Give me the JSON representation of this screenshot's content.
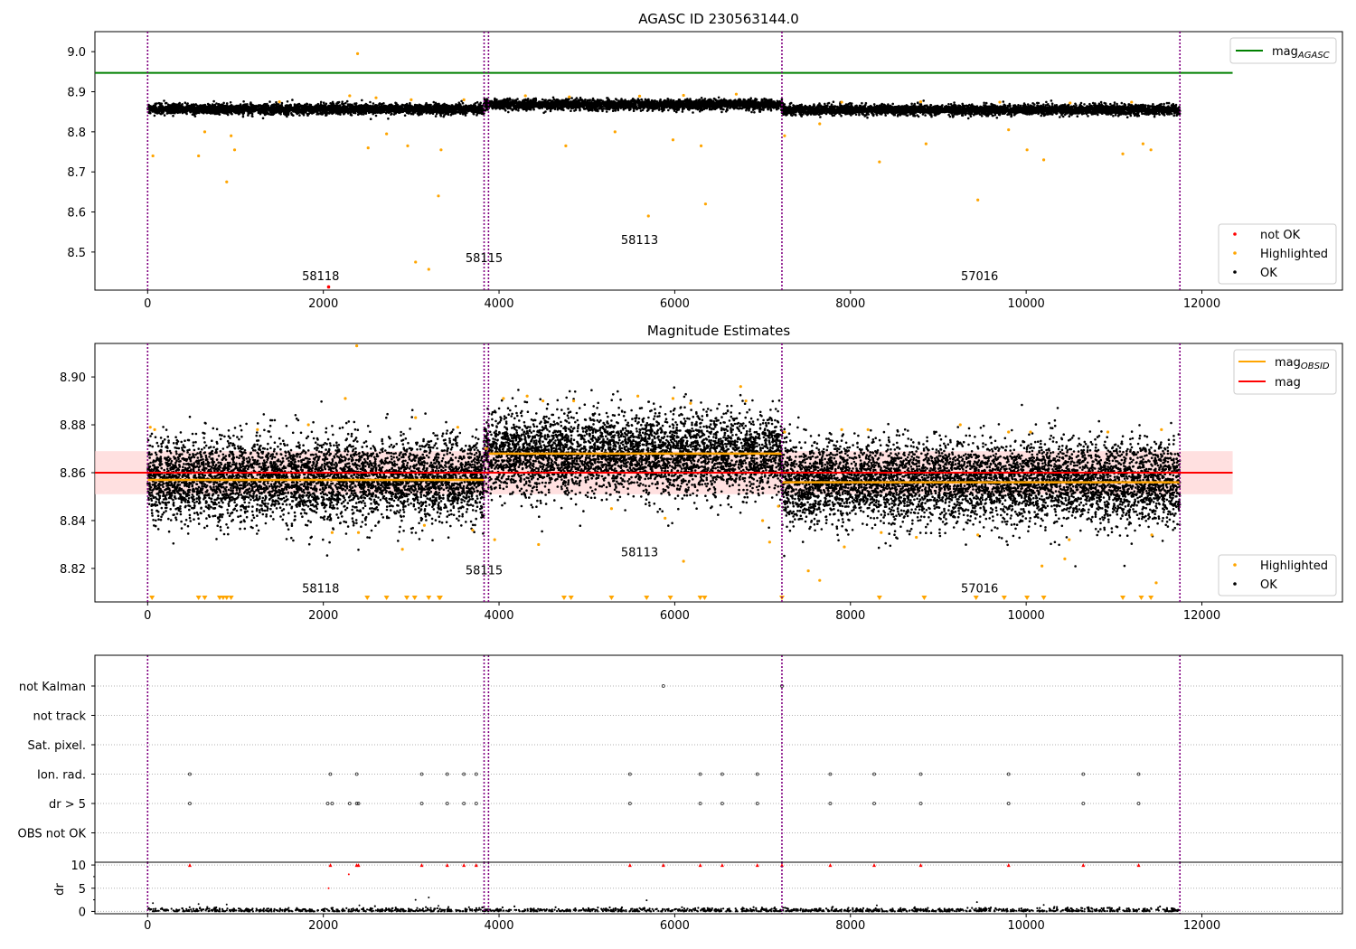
{
  "figure": {
    "title": "AGASC ID 230563144.0",
    "obsid_labels": [
      "58118",
      "58115",
      "58113",
      "57016"
    ],
    "obsid_bounds": [
      0,
      3830,
      3880,
      7220,
      11750
    ],
    "colors": {
      "ok": "#000000",
      "highlighted": "#ffa500",
      "not_ok": "#ff0000",
      "mag_agasc": "#008000",
      "mag": "#ff0000",
      "mag_obsid": "#ffa500",
      "band": "#ffcccc",
      "boundary": "#800080"
    }
  },
  "chart_data": [
    {
      "type": "scatter",
      "title": "",
      "xlim": [
        -600,
        13600
      ],
      "ylim": [
        8.405,
        9.05
      ],
      "xticks": [
        0,
        2000,
        4000,
        6000,
        8000,
        10000,
        12000
      ],
      "yticks": [
        8.5,
        8.6,
        8.7,
        8.8,
        8.9,
        9.0
      ],
      "legend_upper": {
        "position": "top-right",
        "entries": [
          {
            "label": "mag",
            "sub": "AGASC"
          }
        ]
      },
      "legend_lower": {
        "position": "bottom-right",
        "entries": [
          "not OK",
          "Highlighted",
          "OK"
        ]
      },
      "mag_agasc": 8.947,
      "mag_agasc_xrange": [
        -600,
        12350
      ],
      "segments": [
        {
          "obsid": "58118",
          "x": [
            0,
            3830
          ],
          "center": 8.857,
          "spread": 0.006
        },
        {
          "obsid": "58115",
          "x": [
            3830,
            3880
          ],
          "center": 8.87,
          "spread": 0.006
        },
        {
          "obsid": "58113",
          "x": [
            3880,
            7220
          ],
          "center": 8.868,
          "spread": 0.006
        },
        {
          "obsid": "57016",
          "x": [
            7220,
            11750
          ],
          "center": 8.855,
          "spread": 0.006
        }
      ],
      "obsid_label_points": [
        [
          1970,
          8.43
        ],
        [
          3830,
          8.475
        ],
        [
          5600,
          8.52
        ],
        [
          9470,
          8.43
        ]
      ],
      "highlighted_points": [
        [
          60,
          8.74
        ],
        [
          580,
          8.74
        ],
        [
          650,
          8.8
        ],
        [
          900,
          8.675
        ],
        [
          950,
          8.79
        ],
        [
          990,
          8.755
        ],
        [
          2390,
          8.995
        ],
        [
          2510,
          8.76
        ],
        [
          2720,
          8.795
        ],
        [
          2960,
          8.765
        ],
        [
          3050,
          8.475
        ],
        [
          3200,
          8.457
        ],
        [
          3310,
          8.64
        ],
        [
          3340,
          8.755
        ],
        [
          4760,
          8.765
        ],
        [
          5320,
          8.8
        ],
        [
          5700,
          8.59
        ],
        [
          5980,
          8.78
        ],
        [
          6300,
          8.765
        ],
        [
          6350,
          8.62
        ],
        [
          7250,
          8.79
        ],
        [
          7650,
          8.82
        ],
        [
          8330,
          8.725
        ],
        [
          8860,
          8.77
        ],
        [
          9450,
          8.63
        ],
        [
          9800,
          8.805
        ],
        [
          10010,
          8.755
        ],
        [
          10200,
          8.73
        ],
        [
          11100,
          8.745
        ],
        [
          11330,
          8.77
        ],
        [
          11420,
          8.755
        ],
        [
          1500,
          8.875
        ],
        [
          2300,
          8.89
        ],
        [
          2600,
          8.885
        ],
        [
          3000,
          8.88
        ],
        [
          3600,
          8.88
        ],
        [
          4300,
          8.89
        ],
        [
          4800,
          8.887
        ],
        [
          5600,
          8.889
        ],
        [
          6100,
          8.891
        ],
        [
          6700,
          8.894
        ],
        [
          7900,
          8.874
        ],
        [
          8800,
          8.875
        ],
        [
          9700,
          8.874
        ],
        [
          10500,
          8.872
        ],
        [
          11200,
          8.874
        ]
      ],
      "not_ok_points": [
        [
          2060,
          8.413
        ]
      ]
    },
    {
      "type": "scatter",
      "title": "Magnitude Estimates",
      "xlim": [
        -600,
        13600
      ],
      "ylim": [
        8.806,
        8.914
      ],
      "xticks": [
        0,
        2000,
        4000,
        6000,
        8000,
        10000,
        12000
      ],
      "yticks": [
        8.82,
        8.84,
        8.86,
        8.88,
        8.9
      ],
      "legend_upper": {
        "position": "top-right",
        "entries": [
          {
            "label": "mag",
            "sub": "OBSID"
          },
          {
            "label": "mag",
            "sub": ""
          }
        ]
      },
      "legend_lower": {
        "position": "bottom-right",
        "entries": [
          "Highlighted",
          "OK"
        ]
      },
      "mag": 8.86,
      "mag_band": [
        8.851,
        8.869
      ],
      "mag_xrange": [
        -600,
        12350
      ],
      "segments": [
        {
          "obsid": "58118",
          "x": [
            0,
            3830
          ],
          "center": 8.857,
          "spread": 0.0085
        },
        {
          "obsid": "58115",
          "x": [
            3830,
            3880
          ],
          "center": 8.87,
          "spread": 0.0085
        },
        {
          "obsid": "58113",
          "x": [
            3880,
            7220
          ],
          "center": 8.868,
          "spread": 0.0085
        },
        {
          "obsid": "57016",
          "x": [
            7220,
            11750
          ],
          "center": 8.856,
          "spread": 0.0085
        }
      ],
      "obsid_label_points": [
        [
          1970,
          8.81
        ],
        [
          3830,
          8.8175
        ],
        [
          5600,
          8.825
        ],
        [
          9470,
          8.81
        ]
      ],
      "highlighted_points": [
        [
          30,
          8.879
        ],
        [
          80,
          8.878
        ],
        [
          2380,
          8.913
        ],
        [
          2250,
          8.891
        ],
        [
          3050,
          8.883
        ],
        [
          3530,
          8.879
        ],
        [
          1250,
          8.878
        ],
        [
          1830,
          8.88
        ],
        [
          4050,
          8.891
        ],
        [
          4320,
          8.892
        ],
        [
          4500,
          8.89
        ],
        [
          4850,
          8.89
        ],
        [
          5580,
          8.892
        ],
        [
          5980,
          8.891
        ],
        [
          6180,
          8.889
        ],
        [
          6750,
          8.896
        ],
        [
          6810,
          8.89
        ],
        [
          7250,
          8.877
        ],
        [
          7900,
          8.878
        ],
        [
          8200,
          8.878
        ],
        [
          9250,
          8.88
        ],
        [
          9800,
          8.877
        ],
        [
          10050,
          8.877
        ],
        [
          10930,
          8.877
        ],
        [
          11540,
          8.878
        ],
        [
          2100,
          8.835
        ],
        [
          2400,
          8.835
        ],
        [
          3150,
          8.838
        ],
        [
          3700,
          8.836
        ],
        [
          2900,
          8.828
        ],
        [
          3950,
          8.832
        ],
        [
          4450,
          8.83
        ],
        [
          5280,
          8.845
        ],
        [
          5890,
          8.841
        ],
        [
          6100,
          8.823
        ],
        [
          7000,
          8.84
        ],
        [
          7080,
          8.831
        ],
        [
          7180,
          8.846
        ],
        [
          7520,
          8.819
        ],
        [
          7650,
          8.815
        ],
        [
          7930,
          8.829
        ],
        [
          8350,
          8.835
        ],
        [
          8750,
          8.833
        ],
        [
          9450,
          8.834
        ],
        [
          10180,
          8.821
        ],
        [
          10440,
          8.824
        ],
        [
          10490,
          8.832
        ],
        [
          11480,
          8.814
        ],
        [
          11430,
          8.834
        ]
      ],
      "low_markers": [
        50,
        580,
        650,
        820,
        860,
        900,
        950,
        2500,
        2720,
        2950,
        3040,
        3200,
        3320,
        3330,
        4740,
        4820,
        5280,
        5680,
        5950,
        6290,
        6340,
        7220,
        8330,
        8840,
        9430,
        9750,
        10010,
        10200,
        11100,
        11310,
        11420
      ]
    },
    {
      "type": "scatter",
      "title": "",
      "xlim": [
        -600,
        13600
      ],
      "categories": [
        "not Kalman",
        "not track",
        "Sat. pixel.",
        "Ion. rad.",
        "dr > 5",
        "OBS not OK"
      ],
      "flags": {
        "not Kalman": [
          5870,
          7220
        ],
        "not track": [],
        "Sat. pixel.": [],
        "Ion. rad.": [
          480,
          2080,
          2380,
          3120,
          3410,
          3600,
          3740,
          5490,
          6290,
          6540,
          6940,
          7770,
          8270,
          8800,
          9800,
          10650,
          11280
        ],
        "dr > 5": [
          480,
          2050,
          2100,
          2300,
          2380,
          2400,
          3120,
          3410,
          3600,
          3740,
          5490,
          6290,
          6540,
          6940,
          7770,
          8270,
          8800,
          9800,
          10650,
          11280
        ],
        "OBS not OK": []
      }
    },
    {
      "type": "scatter",
      "title": "",
      "ylabel": "dr",
      "xlim": [
        -600,
        13600
      ],
      "ylim": [
        -0.5,
        10.6
      ],
      "xticks": [
        0,
        2000,
        4000,
        6000,
        8000,
        10000,
        12000
      ],
      "yticks": [
        0,
        5,
        10
      ],
      "baseline_spread": 0.35,
      "clipped_points": [
        480,
        2080,
        2380,
        2400,
        3120,
        3410,
        3600,
        3740,
        5490,
        5870,
        6290,
        6540,
        6940,
        7220,
        7770,
        8270,
        8800,
        9800,
        10650,
        11280
      ],
      "mid_points": [
        [
          2060,
          5.0
        ],
        [
          2290,
          8.0
        ],
        [
          3200,
          3.0
        ],
        [
          3050,
          2.5
        ],
        [
          5680,
          2.4
        ],
        [
          900,
          1.5
        ],
        [
          580,
          1.6
        ],
        [
          9440,
          2.0
        ],
        [
          3310,
          1.2
        ],
        [
          60,
          1.8
        ],
        [
          8300,
          1.3
        ],
        [
          10200,
          1.4
        ],
        [
          2410,
          1.3
        ]
      ]
    }
  ]
}
